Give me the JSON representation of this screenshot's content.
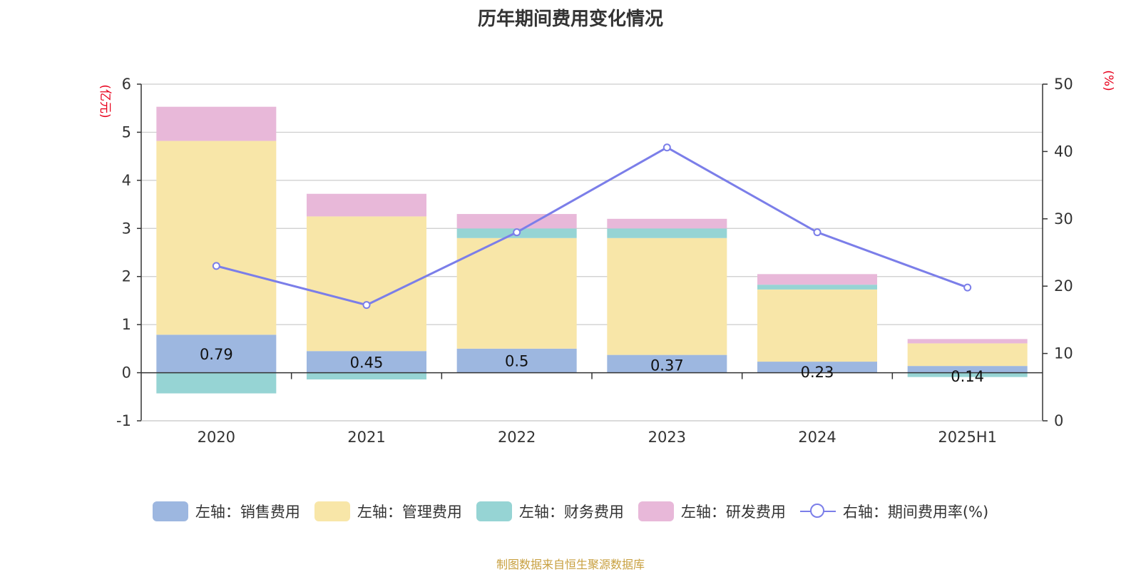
{
  "chart_data": {
    "type": "bar",
    "title": "历年期间费用变化情况",
    "categories": [
      "2020",
      "2021",
      "2022",
      "2023",
      "2024",
      "2025H1"
    ],
    "left_axis": {
      "label": "(亿元)",
      "min": -1,
      "max": 6,
      "ticks": [
        -1,
        0,
        1,
        2,
        3,
        4,
        5,
        6
      ]
    },
    "right_axis": {
      "label": "(%)",
      "min": 0,
      "max": 50,
      "ticks": [
        0,
        10,
        20,
        30,
        40,
        50
      ]
    },
    "series": [
      {
        "name": "左轴：销售费用",
        "type": "bar",
        "axis": "left",
        "color": "#9db7e0",
        "values": [
          0.79,
          0.45,
          0.5,
          0.37,
          0.23,
          0.14
        ],
        "labels": [
          "0.79",
          "0.45",
          "0.5",
          "0.37",
          "0.23",
          "0.14"
        ]
      },
      {
        "name": "左轴：管理费用",
        "type": "bar",
        "axis": "left",
        "color": "#f8e6a8",
        "values": [
          4.03,
          2.8,
          2.3,
          2.43,
          1.5,
          0.47
        ]
      },
      {
        "name": "左轴：财务费用",
        "type": "bar",
        "axis": "left",
        "color": "#96d4d4",
        "values": [
          -0.43,
          -0.14,
          0.2,
          0.2,
          0.1,
          -0.09
        ]
      },
      {
        "name": "左轴：研发费用",
        "type": "bar",
        "axis": "left",
        "color": "#e8b8d9",
        "values": [
          0.71,
          0.47,
          0.3,
          0.2,
          0.22,
          0.09
        ]
      },
      {
        "name": "右轴：期间费用率(%)",
        "type": "line",
        "axis": "right",
        "color": "#7b7ee9",
        "values": [
          23,
          17.2,
          28,
          40.6,
          28,
          19.8
        ]
      }
    ],
    "grid": true,
    "legend_position": "bottom"
  },
  "source": "制图数据来自恒生聚源数据库"
}
